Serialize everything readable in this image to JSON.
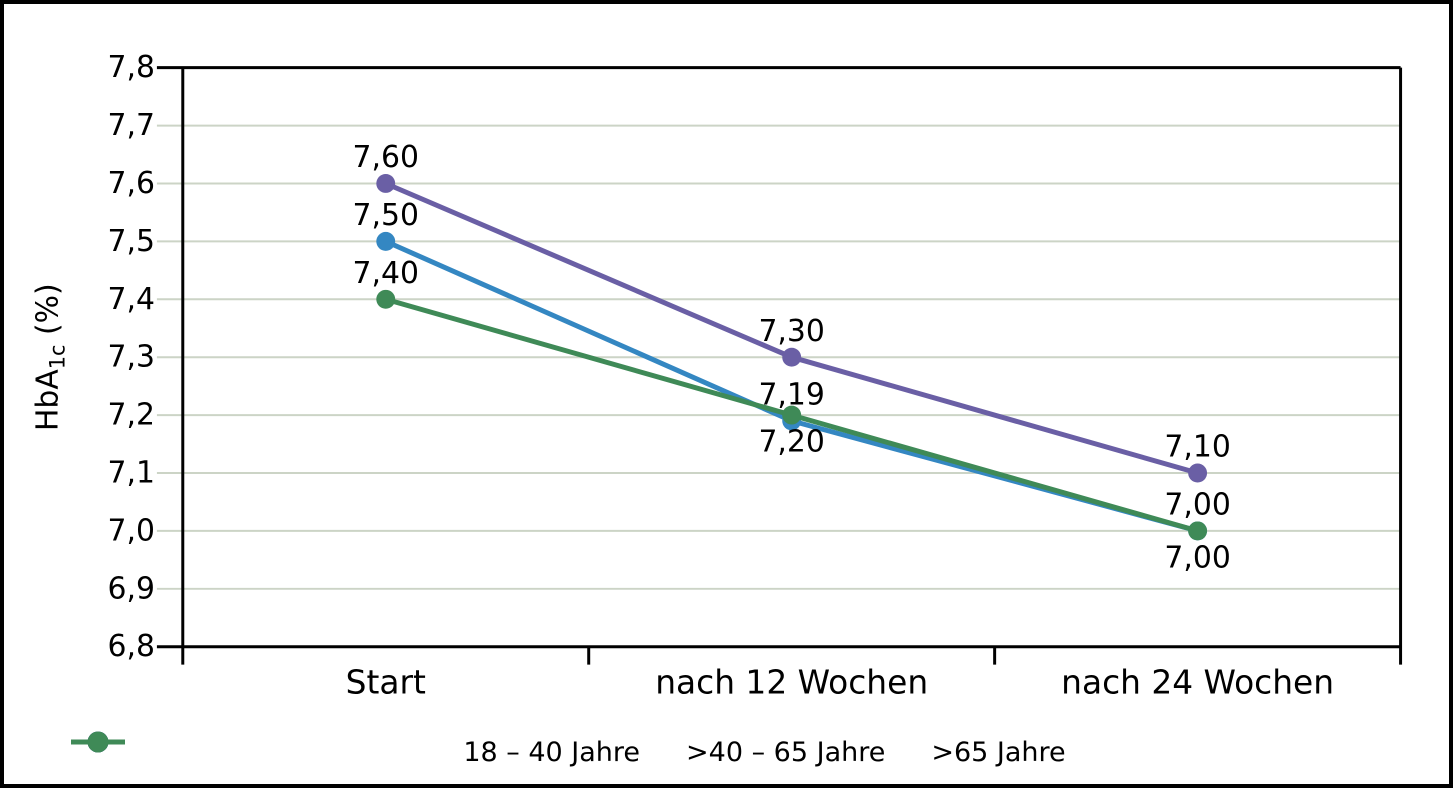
{
  "chart_data": {
    "type": "line",
    "title": "",
    "categories": [
      "Start",
      "nach 12 Wochen",
      "nach 24 Wochen"
    ],
    "series": [
      {
        "name": "18 – 40 Jahre",
        "color": "#3487c2",
        "values": [
          7.5,
          7.19,
          7.0
        ],
        "point_labels": [
          "7,50",
          "7,19",
          "7,00"
        ],
        "label_side": [
          "above",
          "above",
          "above"
        ]
      },
      {
        "name": ">40 – 65 Jahre",
        "color": "#6a5fa5",
        "values": [
          7.6,
          7.3,
          7.1
        ],
        "point_labels": [
          "7,60",
          "7,30",
          "7,10"
        ],
        "label_side": [
          "above",
          "above",
          "above"
        ]
      },
      {
        "name": ">65 Jahre",
        "color": "#3f8a57",
        "values": [
          7.4,
          7.2,
          7.0
        ],
        "point_labels": [
          "7,40",
          "7,20",
          "7,00"
        ],
        "label_side": [
          "above",
          "below",
          "below"
        ]
      }
    ],
    "xlabel": "",
    "ylabel_prefix": "HbA",
    "ylabel_sub": "1c",
    "ylabel_suffix": " (%)",
    "ylim": [
      6.8,
      7.8
    ],
    "ytick_step": 0.1,
    "ytick_labels": [
      "7,8",
      "7,7",
      "7,6",
      "7,5",
      "7,4",
      "7,3",
      "7,2",
      "7,1",
      "7,0",
      "6,9",
      "6,8"
    ],
    "grid": true,
    "legend_position": "bottom",
    "colors": {
      "grid": "#ccd4c6",
      "axis": "#000000",
      "text": "#000000",
      "background": "#ffffff",
      "frame_border": "#000000"
    }
  }
}
